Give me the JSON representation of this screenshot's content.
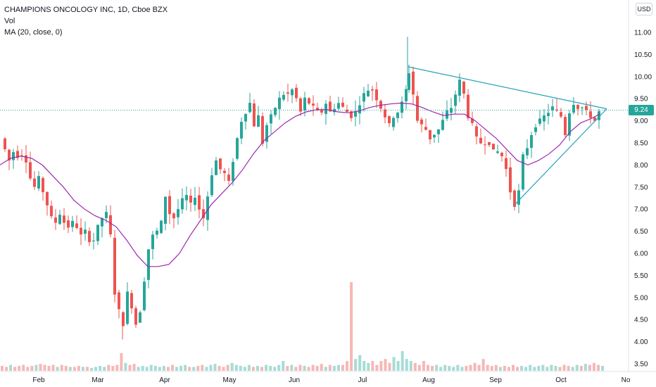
{
  "legend": {
    "symbol": "CHAMPIONS ONCOLOGY INC, 1D, Cboe BZX",
    "volume": "Vol",
    "ma": "MA (20, close, 0)"
  },
  "currency": "USD",
  "last_price_label": "9.24",
  "colors": {
    "up": "#26a69a",
    "down": "#ef5350",
    "ma": "#9c27b0",
    "trendline": "#26a0b8",
    "vol_up": "#a7dcd5",
    "vol_down": "#f5b8b6"
  },
  "chart_data": {
    "type": "candlestick",
    "title": "CHAMPIONS ONCOLOGY INC, 1D, Cboe BZX",
    "y_axis": {
      "position": "right",
      "ticks": [
        "3.50",
        "4.00",
        "4.50",
        "5.00",
        "5.50",
        "6.00",
        "6.50",
        "7.00",
        "7.50",
        "8.00",
        "8.50",
        "9.00",
        "9.50",
        "10.00",
        "10.50",
        "11.00"
      ],
      "range": [
        3.3,
        11.3
      ]
    },
    "x_axis": {
      "ticks": [
        "Feb",
        "Mar",
        "Apr",
        "May",
        "Jun",
        "Jul",
        "Aug",
        "Sep",
        "Oct",
        "No"
      ]
    },
    "grid": false,
    "last_price": 9.24,
    "series": [
      {
        "name": "Price",
        "close_path": [
          [
            0,
            8.6
          ],
          [
            6,
            8.35
          ],
          [
            12,
            8.1
          ],
          [
            18,
            8.3
          ],
          [
            24,
            8.2
          ],
          [
            30,
            8.25
          ],
          [
            36,
            8.1
          ],
          [
            42,
            7.7
          ],
          [
            48,
            7.5
          ],
          [
            54,
            7.7
          ],
          [
            60,
            7.4
          ],
          [
            66,
            7.1
          ],
          [
            72,
            6.8
          ],
          [
            78,
            6.7
          ],
          [
            84,
            6.9
          ],
          [
            90,
            6.7
          ],
          [
            96,
            6.6
          ],
          [
            102,
            6.7
          ],
          [
            108,
            6.6
          ],
          [
            114,
            6.4
          ],
          [
            120,
            6.5
          ],
          [
            126,
            6.3
          ],
          [
            132,
            6.3
          ],
          [
            138,
            6.6
          ],
          [
            144,
            6.8
          ],
          [
            150,
            6.9
          ],
          [
            156,
            6.4
          ],
          [
            162,
            5.1
          ],
          [
            168,
            4.7
          ],
          [
            174,
            4.4
          ],
          [
            180,
            5.1
          ],
          [
            186,
            4.8
          ],
          [
            192,
            4.4
          ],
          [
            198,
            4.7
          ],
          [
            204,
            5.4
          ],
          [
            210,
            6.1
          ],
          [
            216,
            6.4
          ],
          [
            222,
            6.5
          ],
          [
            228,
            6.7
          ],
          [
            234,
            7.3
          ],
          [
            240,
            6.9
          ],
          [
            246,
            6.8
          ],
          [
            252,
            7.0
          ],
          [
            258,
            7.2
          ],
          [
            264,
            7.3
          ],
          [
            270,
            7.1
          ],
          [
            276,
            7.3
          ],
          [
            282,
            7.0
          ],
          [
            288,
            6.8
          ],
          [
            294,
            7.3
          ],
          [
            300,
            7.8
          ],
          [
            306,
            8.1
          ],
          [
            312,
            7.9
          ],
          [
            318,
            7.8
          ],
          [
            324,
            7.6
          ],
          [
            330,
            8.1
          ],
          [
            336,
            8.6
          ],
          [
            342,
            9.0
          ],
          [
            348,
            9.2
          ],
          [
            354,
            9.4
          ],
          [
            360,
            8.9
          ],
          [
            366,
            9.1
          ],
          [
            372,
            8.5
          ],
          [
            378,
            8.9
          ],
          [
            384,
            9.1
          ],
          [
            390,
            9.3
          ],
          [
            396,
            9.5
          ],
          [
            402,
            9.6
          ],
          [
            408,
            9.6
          ],
          [
            414,
            9.7
          ],
          [
            420,
            9.5
          ],
          [
            426,
            9.2
          ],
          [
            432,
            9.5
          ],
          [
            438,
            9.4
          ],
          [
            444,
            9.3
          ],
          [
            450,
            9.2
          ],
          [
            456,
            9.2
          ],
          [
            462,
            9.4
          ],
          [
            468,
            9.2
          ],
          [
            474,
            9.3
          ],
          [
            480,
            9.4
          ],
          [
            486,
            9.3
          ],
          [
            492,
            9.2
          ],
          [
            498,
            9.1
          ],
          [
            504,
            9.2
          ],
          [
            510,
            9.4
          ],
          [
            516,
            9.6
          ],
          [
            522,
            9.7
          ],
          [
            528,
            9.7
          ],
          [
            534,
            9.5
          ],
          [
            540,
            9.3
          ],
          [
            546,
            9.1
          ],
          [
            552,
            8.9
          ],
          [
            558,
            9.1
          ],
          [
            564,
            9.2
          ],
          [
            570,
            9.4
          ],
          [
            576,
            9.7
          ],
          [
            580,
            10.1
          ],
          [
            586,
            9.6
          ],
          [
            592,
            9.0
          ],
          [
            598,
            8.9
          ],
          [
            604,
            8.8
          ],
          [
            610,
            8.6
          ],
          [
            616,
            8.7
          ],
          [
            622,
            8.8
          ],
          [
            628,
            9.0
          ],
          [
            634,
            9.2
          ],
          [
            640,
            9.3
          ],
          [
            646,
            9.6
          ],
          [
            652,
            9.9
          ],
          [
            658,
            9.6
          ],
          [
            664,
            9.1
          ],
          [
            670,
            8.9
          ],
          [
            676,
            8.6
          ],
          [
            682,
            8.5
          ],
          [
            688,
            8.5
          ],
          [
            694,
            8.5
          ],
          [
            700,
            8.3
          ],
          [
            706,
            8.3
          ],
          [
            712,
            8.2
          ],
          [
            718,
            7.9
          ],
          [
            724,
            7.4
          ],
          [
            730,
            7.1
          ],
          [
            736,
            7.4
          ],
          [
            742,
            8.2
          ],
          [
            748,
            8.4
          ],
          [
            754,
            8.7
          ],
          [
            760,
            8.9
          ],
          [
            766,
            9.0
          ],
          [
            772,
            9.1
          ],
          [
            778,
            9.2
          ],
          [
            784,
            9.3
          ],
          [
            790,
            9.2
          ],
          [
            796,
            9.1
          ],
          [
            802,
            8.7
          ],
          [
            808,
            9.2
          ],
          [
            814,
            9.4
          ],
          [
            820,
            9.3
          ],
          [
            826,
            9.3
          ],
          [
            832,
            9.2
          ],
          [
            838,
            9.1
          ],
          [
            844,
            9.0
          ],
          [
            850,
            9.2
          ],
          [
            851,
            9.24
          ]
        ]
      },
      {
        "name": "MA (20, close, 0)",
        "points": [
          [
            0,
            8.0
          ],
          [
            15,
            8.15
          ],
          [
            30,
            8.2
          ],
          [
            45,
            8.15
          ],
          [
            60,
            8.0
          ],
          [
            75,
            7.75
          ],
          [
            90,
            7.5
          ],
          [
            105,
            7.2
          ],
          [
            120,
            7.0
          ],
          [
            135,
            6.85
          ],
          [
            150,
            6.75
          ],
          [
            165,
            6.6
          ],
          [
            180,
            6.3
          ],
          [
            195,
            5.95
          ],
          [
            210,
            5.7
          ],
          [
            225,
            5.7
          ],
          [
            240,
            5.75
          ],
          [
            255,
            6.0
          ],
          [
            270,
            6.4
          ],
          [
            285,
            6.75
          ],
          [
            300,
            7.1
          ],
          [
            315,
            7.35
          ],
          [
            330,
            7.6
          ],
          [
            345,
            7.9
          ],
          [
            360,
            8.25
          ],
          [
            375,
            8.55
          ],
          [
            390,
            8.75
          ],
          [
            405,
            8.95
          ],
          [
            420,
            9.1
          ],
          [
            435,
            9.2
          ],
          [
            450,
            9.25
          ],
          [
            465,
            9.25
          ],
          [
            480,
            9.2
          ],
          [
            495,
            9.18
          ],
          [
            510,
            9.22
          ],
          [
            525,
            9.3
          ],
          [
            540,
            9.35
          ],
          [
            555,
            9.38
          ],
          [
            570,
            9.4
          ],
          [
            585,
            9.38
          ],
          [
            600,
            9.3
          ],
          [
            615,
            9.2
          ],
          [
            630,
            9.12
          ],
          [
            645,
            9.15
          ],
          [
            660,
            9.15
          ],
          [
            675,
            9.0
          ],
          [
            690,
            8.8
          ],
          [
            705,
            8.6
          ],
          [
            720,
            8.35
          ],
          [
            735,
            8.1
          ],
          [
            750,
            8.0
          ],
          [
            765,
            8.1
          ],
          [
            780,
            8.25
          ],
          [
            795,
            8.45
          ],
          [
            810,
            8.75
          ],
          [
            825,
            8.95
          ],
          [
            840,
            9.05
          ],
          [
            852,
            9.15
          ]
        ]
      },
      {
        "name": "Vol",
        "relative_values": [
          0.25,
          0.2,
          0.3,
          0.2,
          0.25,
          0.3,
          0.2,
          0.25,
          0.3,
          0.35,
          0.3,
          0.25,
          0.3,
          0.2,
          0.3,
          0.25,
          0.2,
          0.2,
          0.25,
          0.2,
          0.2,
          0.15,
          0.2,
          0.25,
          0.2,
          0.3,
          0.25,
          0.3,
          0.9,
          0.4,
          0.3,
          0.35,
          0.2,
          0.25,
          0.2,
          0.3,
          0.25,
          0.2,
          0.25,
          0.2,
          0.3,
          0.2,
          0.25,
          0.3,
          0.2,
          0.2,
          0.25,
          0.3,
          0.2,
          0.3,
          0.35,
          0.25,
          0.2,
          0.3,
          0.4,
          0.3,
          0.25,
          0.2,
          0.3,
          0.2,
          0.25,
          0.2,
          0.3,
          0.25,
          0.2,
          0.3,
          0.5,
          0.25,
          0.3,
          0.2,
          0.3,
          0.25,
          0.2,
          0.3,
          0.25,
          0.35,
          0.2,
          0.3,
          0.25,
          0.3,
          0.3,
          0.5,
          4.5,
          0.6,
          0.8,
          0.5,
          0.4,
          0.5,
          0.3,
          0.5,
          0.6,
          0.4,
          0.7,
          0.5,
          1.0,
          0.6,
          0.5,
          0.4,
          0.3,
          0.5,
          0.3,
          0.25,
          0.3,
          0.2,
          0.3,
          0.25,
          0.2,
          0.3,
          0.2,
          0.25,
          0.3,
          0.4,
          0.3,
          0.6,
          0.3,
          0.25,
          0.3,
          0.2,
          0.25,
          0.2,
          0.3,
          0.2,
          0.25,
          0.2,
          0.3,
          0.2,
          0.25,
          0.3,
          0.2,
          0.3,
          0.25,
          0.2,
          0.3,
          0.25,
          0.2,
          0.3,
          0.25,
          0.35,
          0.3,
          0.4,
          0.3,
          0.25
        ]
      }
    ],
    "annotations": [
      {
        "type": "trendline",
        "from": [
          580,
          10.22
        ],
        "to": [
          862,
          9.27
        ]
      },
      {
        "type": "trendline",
        "from": [
          730,
          7.08
        ],
        "to": [
          862,
          9.27
        ]
      }
    ]
  }
}
